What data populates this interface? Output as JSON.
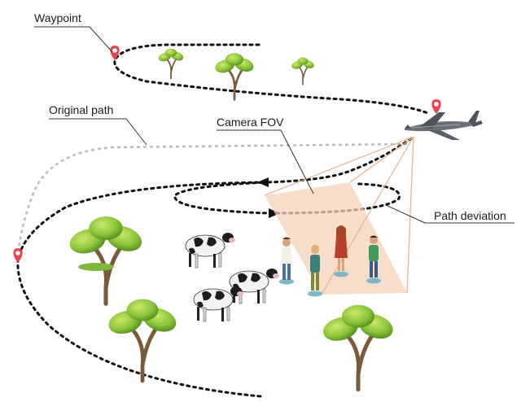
{
  "labels": {
    "waypoint": "Waypoint",
    "original_path": "Original path",
    "camera_fov": "Camera FOV",
    "path_deviation": "Path deviation"
  },
  "colors": {
    "path": "#111111",
    "original_path": "#bdbdbd",
    "marker": "#e8454f",
    "fov_fill": "#f6d2b8",
    "fov_line": "#e2b08e",
    "tree_light": "#9ccc3a",
    "tree_dark": "#5b8f1f",
    "trunk": "#7a5a3a"
  },
  "icons": {
    "marker": "map-pin-icon",
    "drone": "fixed-wing-drone-icon",
    "tree": "tree-icon",
    "cow": "cow-icon",
    "person": "person-icon"
  }
}
